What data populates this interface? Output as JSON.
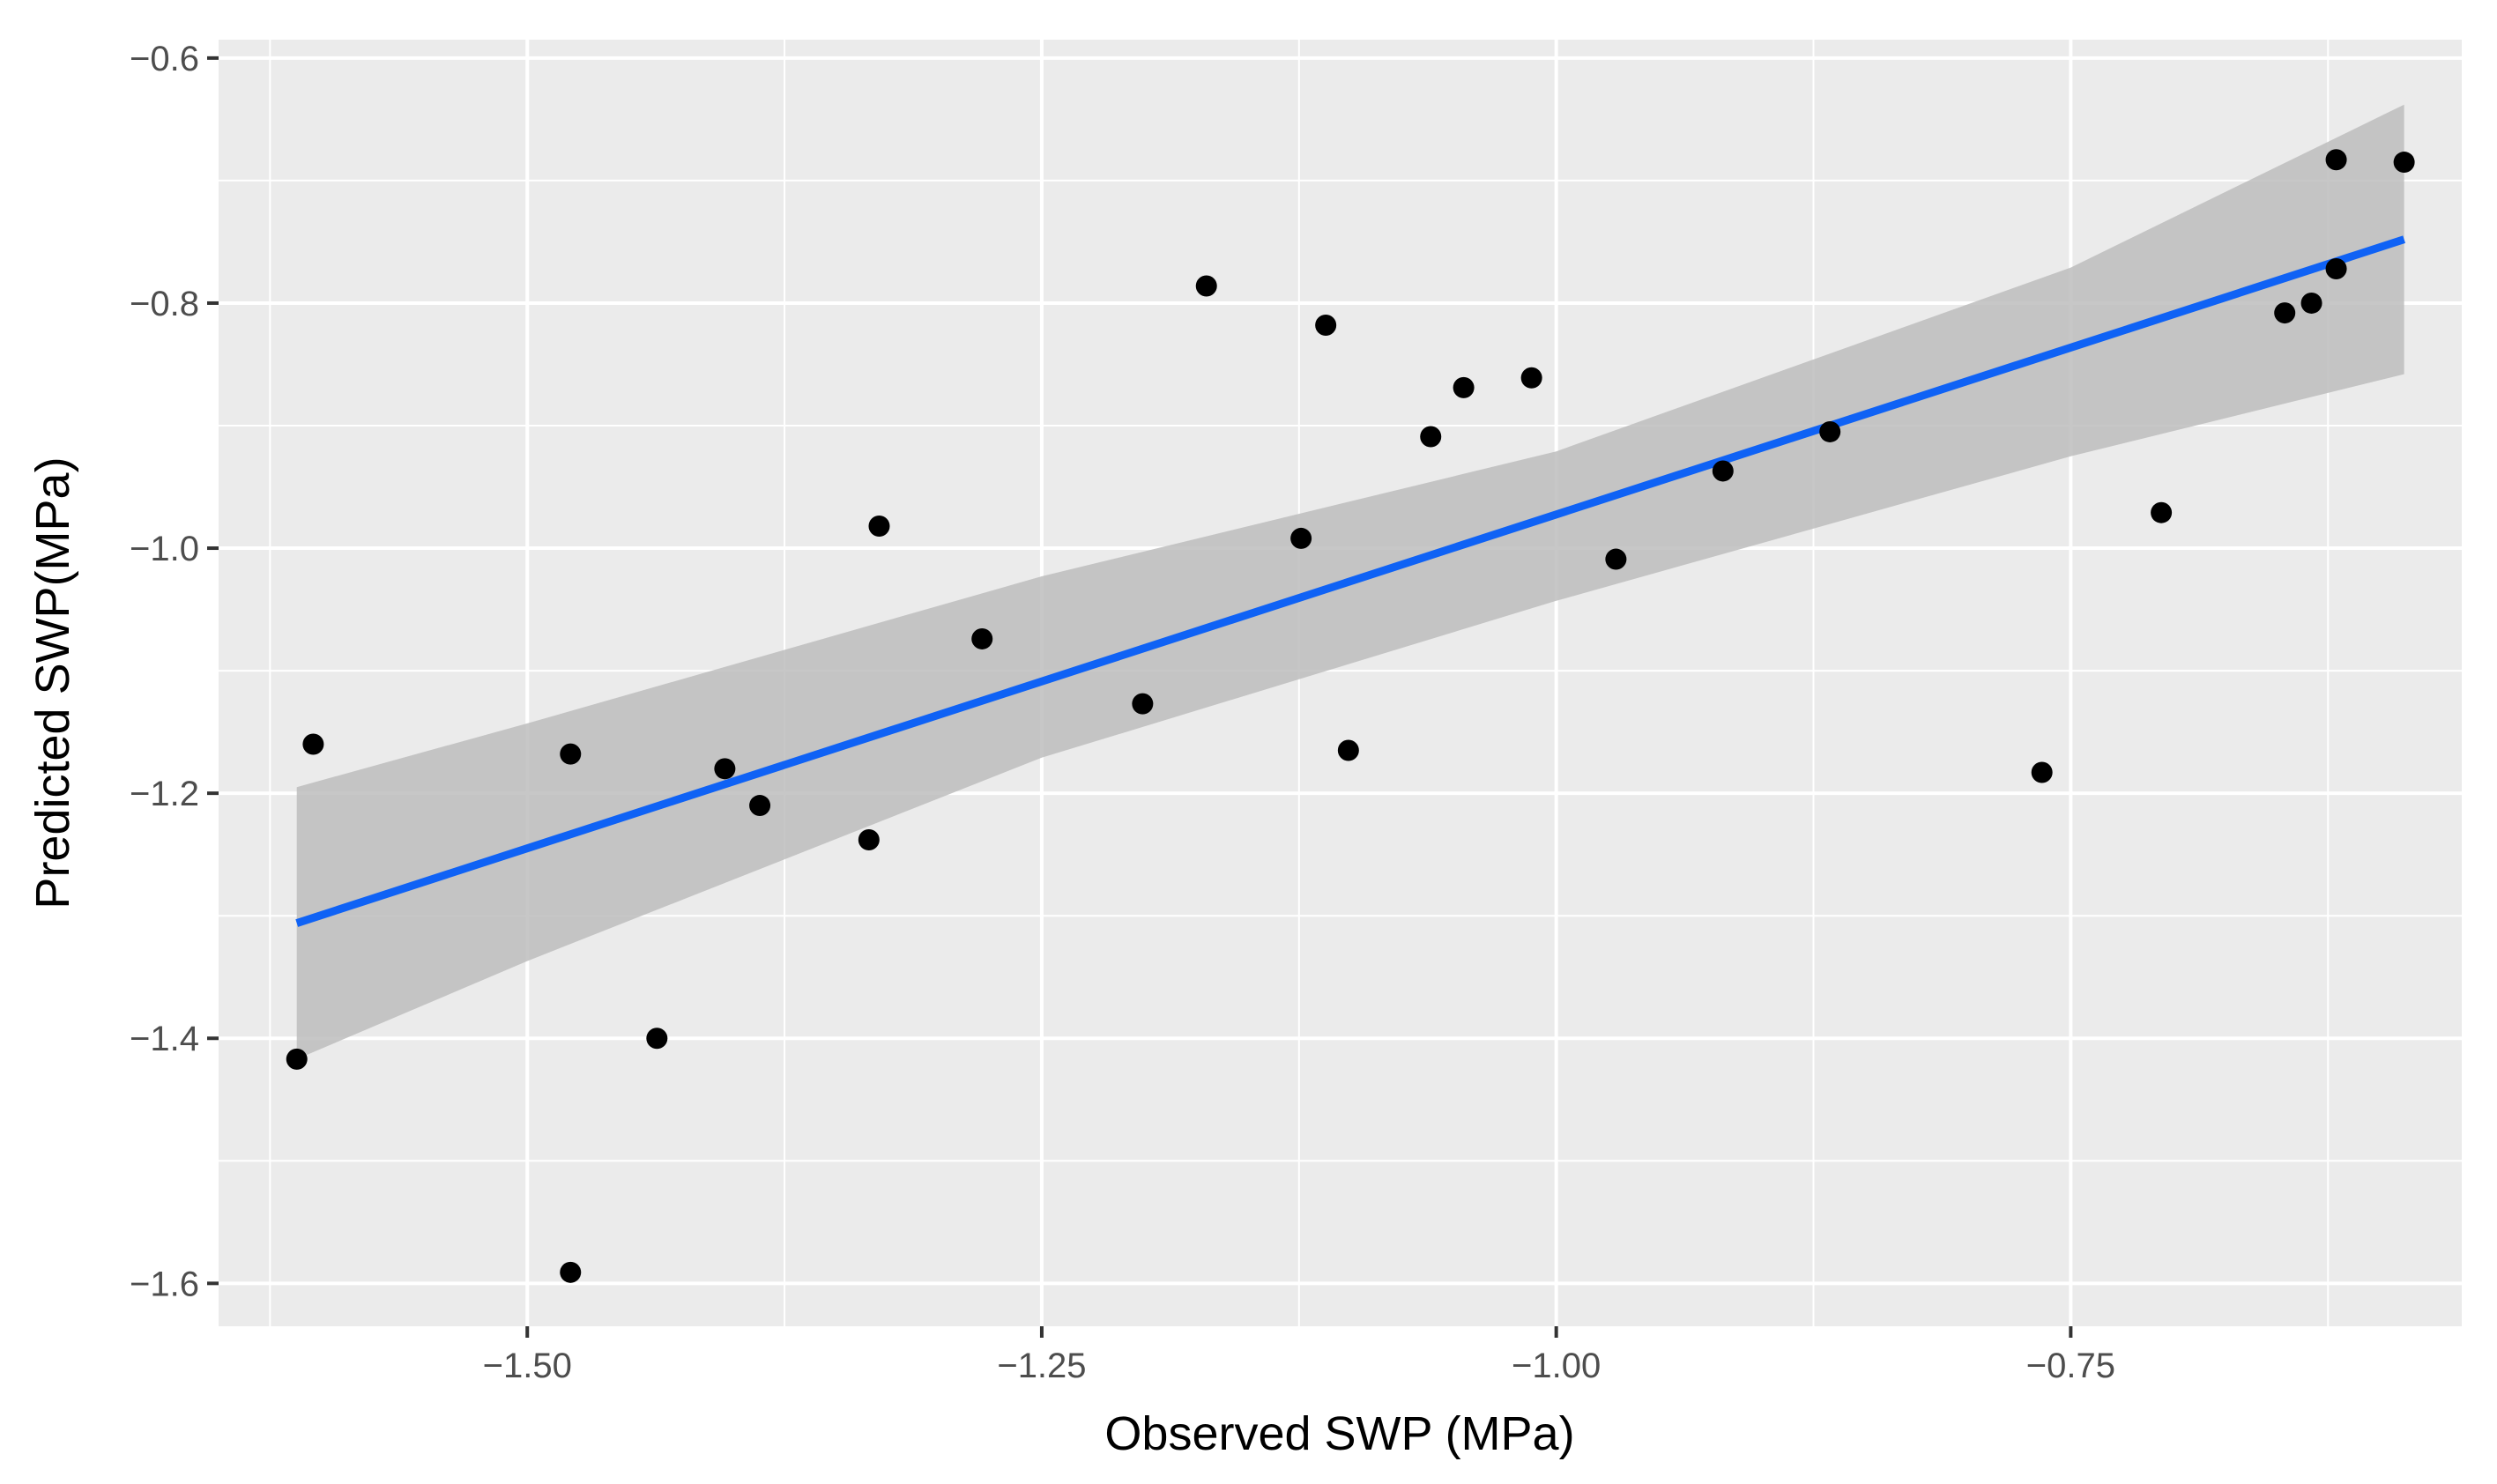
{
  "chart_data": {
    "type": "scatter",
    "title": "",
    "xlabel": "Observed SWP (MPa)",
    "ylabel": "Predicted SWP(MPa)",
    "xlim": [
      -1.65,
      -0.56
    ],
    "ylim": [
      -1.635,
      -0.585
    ],
    "x_ticks": [
      -1.5,
      -1.25,
      -1.0,
      -0.75
    ],
    "x_tick_labels": [
      "−1.50",
      "−1.25",
      "−1.00",
      "−0.75"
    ],
    "y_ticks": [
      -0.6,
      -0.8,
      -1.0,
      -1.2,
      -1.4,
      -1.6
    ],
    "y_tick_labels": [
      "−0.6",
      "−0.8",
      "−1.0",
      "−1.2",
      "−1.4",
      "−1.6"
    ],
    "grid": true,
    "points": [
      {
        "x": -1.612,
        "y": -1.417
      },
      {
        "x": -1.604,
        "y": -1.16
      },
      {
        "x": -1.479,
        "y": -1.168
      },
      {
        "x": -1.479,
        "y": -1.591
      },
      {
        "x": -1.437,
        "y": -1.4
      },
      {
        "x": -1.404,
        "y": -1.18
      },
      {
        "x": -1.387,
        "y": -1.21
      },
      {
        "x": -1.334,
        "y": -1.238
      },
      {
        "x": -1.329,
        "y": -0.982
      },
      {
        "x": -1.279,
        "y": -1.074
      },
      {
        "x": -1.201,
        "y": -1.127
      },
      {
        "x": -1.17,
        "y": -0.786
      },
      {
        "x": -1.124,
        "y": -0.992
      },
      {
        "x": -1.112,
        "y": -0.818
      },
      {
        "x": -1.101,
        "y": -1.165
      },
      {
        "x": -1.061,
        "y": -0.909
      },
      {
        "x": -1.045,
        "y": -0.869
      },
      {
        "x": -1.012,
        "y": -0.861
      },
      {
        "x": -0.971,
        "y": -1.009
      },
      {
        "x": -0.919,
        "y": -0.937
      },
      {
        "x": -0.867,
        "y": -0.905
      },
      {
        "x": -0.764,
        "y": -1.183
      },
      {
        "x": -0.706,
        "y": -0.971
      },
      {
        "x": -0.646,
        "y": -0.808
      },
      {
        "x": -0.633,
        "y": -0.8
      },
      {
        "x": -0.621,
        "y": -0.772
      },
      {
        "x": -0.621,
        "y": -0.683
      },
      {
        "x": -0.588,
        "y": -0.685
      }
    ],
    "fit_line": {
      "x": [
        -1.612,
        -0.588
      ],
      "y": [
        -1.306,
        -0.748
      ]
    },
    "confidence_band": {
      "x": [
        -1.612,
        -1.5,
        -1.25,
        -1.0,
        -0.75,
        -0.588
      ],
      "upper": [
        -1.195,
        -1.143,
        -1.023,
        -0.921,
        -0.771,
        -0.638
      ],
      "lower": [
        -1.417,
        -1.337,
        -1.171,
        -1.043,
        -0.925,
        -0.858
      ]
    },
    "colors": {
      "panel": "#ebebeb",
      "grid": "#ffffff",
      "points": "#000000",
      "fit_line": "#0f62f5",
      "band": "#bdbdbd"
    }
  }
}
